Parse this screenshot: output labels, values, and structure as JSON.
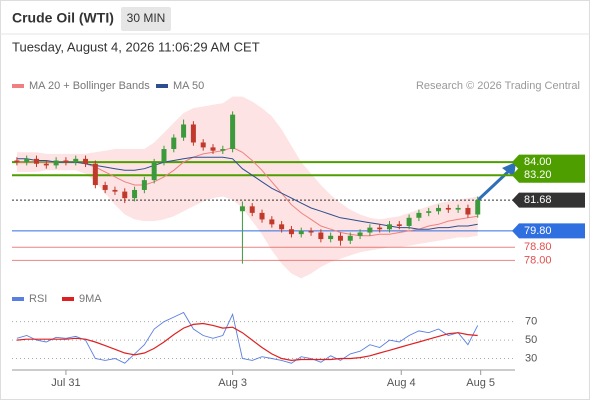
{
  "header": {
    "instrument": "Crude Oil (WTI)",
    "timeframe": "30 MIN",
    "datetime": "Tuesday, August 4, 2026 11:06:29 AM CET",
    "credit": "Research © 2026 Trading Central"
  },
  "chart_data": [
    {
      "type": "candlestick",
      "up_color": "#3c9a3c",
      "down_color": "#c0392b",
      "xlim": [
        -0.5,
        50.8
      ],
      "ylim": [
        76.8,
        88.1
      ],
      "open": [
        84.1,
        84.0,
        84.2,
        83.9,
        83.8,
        84.1,
        84.0,
        84.2,
        83.9,
        82.6,
        82.3,
        82.2,
        81.8,
        82.3,
        82.9,
        84.0,
        84.8,
        85.5,
        86.3,
        85.2,
        84.9,
        84.7,
        84.8,
        81.0,
        81.3,
        80.9,
        80.5,
        80.2,
        79.9,
        79.6,
        79.8,
        79.7,
        79.3,
        79.5,
        79.2,
        79.5,
        79.7,
        80.0,
        79.9,
        80.2,
        80.1,
        80.6,
        80.9,
        81.0,
        81.2,
        81.1,
        81.2,
        80.8
      ],
      "high": [
        84.3,
        84.4,
        84.4,
        84.1,
        84.3,
        84.3,
        84.4,
        84.4,
        84.1,
        82.8,
        82.5,
        82.4,
        82.5,
        83.1,
        84.2,
        85.0,
        85.7,
        86.6,
        86.5,
        85.4,
        85.1,
        85.0,
        87.1,
        81.6,
        81.5,
        81.1,
        80.7,
        80.4,
        80.1,
        80.0,
        80.0,
        79.9,
        79.7,
        79.7,
        79.7,
        79.9,
        80.2,
        80.2,
        80.4,
        80.4,
        80.8,
        81.1,
        81.2,
        81.4,
        81.4,
        81.4,
        81.4,
        81.9
      ],
      "low": [
        83.8,
        83.8,
        83.7,
        83.6,
        83.6,
        83.8,
        83.8,
        83.7,
        82.4,
        82.1,
        82.0,
        81.5,
        81.6,
        82.1,
        82.7,
        83.8,
        84.6,
        85.3,
        85.0,
        84.7,
        84.5,
        84.5,
        84.6,
        77.8,
        80.7,
        80.3,
        80.0,
        79.7,
        79.4,
        79.4,
        79.5,
        79.1,
        79.1,
        78.9,
        79.0,
        79.3,
        79.5,
        79.7,
        79.7,
        79.9,
        79.9,
        80.4,
        80.7,
        80.8,
        80.9,
        80.9,
        80.6,
        80.6
      ],
      "close": [
        84.0,
        84.2,
        83.9,
        83.8,
        84.1,
        84.0,
        84.2,
        83.9,
        82.6,
        82.3,
        82.2,
        81.8,
        82.3,
        82.9,
        84.0,
        84.8,
        85.5,
        86.3,
        85.2,
        84.9,
        84.7,
        84.8,
        86.9,
        81.3,
        80.9,
        80.5,
        80.2,
        79.9,
        79.6,
        79.8,
        79.7,
        79.3,
        79.5,
        79.2,
        79.5,
        79.7,
        80.0,
        79.9,
        80.2,
        80.1,
        80.6,
        80.9,
        81.0,
        81.2,
        81.1,
        81.2,
        80.8,
        81.68
      ],
      "series": [
        {
          "name": "MA 20 + Bollinger Bands",
          "color": "#f08080",
          "band_color": "#fde3e3",
          "values": [
            84.0,
            84.0,
            84.0,
            84.0,
            84.0,
            84.0,
            84.0,
            83.9,
            83.7,
            83.4,
            83.1,
            82.8,
            82.6,
            82.6,
            82.8,
            83.1,
            83.5,
            84.0,
            84.3,
            84.5,
            84.6,
            84.7,
            84.9,
            84.6,
            84.1,
            83.5,
            82.8,
            82.1,
            81.4,
            80.9,
            80.5,
            80.1,
            79.9,
            79.7,
            79.6,
            79.5,
            79.5,
            79.6,
            79.6,
            79.7,
            79.8,
            79.9,
            80.1,
            80.2,
            80.4,
            80.5,
            80.6,
            80.7
          ],
          "upper": [
            84.6,
            84.6,
            84.6,
            84.5,
            84.5,
            84.5,
            84.5,
            84.5,
            84.6,
            84.7,
            84.8,
            84.8,
            84.8,
            84.8,
            85.2,
            85.8,
            86.4,
            87.0,
            87.3,
            87.4,
            87.5,
            87.6,
            88.0,
            88.0,
            87.7,
            87.3,
            86.8,
            86.0,
            85.0,
            84.0,
            83.3,
            82.6,
            82.0,
            81.5,
            81.1,
            80.8,
            80.6,
            80.5,
            80.6,
            80.7,
            80.9,
            81.1,
            81.3,
            81.5,
            81.6,
            81.7,
            81.8,
            81.9
          ],
          "lower": [
            83.4,
            83.4,
            83.4,
            83.5,
            83.5,
            83.5,
            83.5,
            83.3,
            82.8,
            82.1,
            81.4,
            80.8,
            80.5,
            80.4,
            80.4,
            80.5,
            80.7,
            81.0,
            81.3,
            81.6,
            81.8,
            81.9,
            81.7,
            81.2,
            80.4,
            79.6,
            78.6,
            77.8,
            77.2,
            76.9,
            77.2,
            77.6,
            77.9,
            78.1,
            78.3,
            78.5,
            78.6,
            78.7,
            78.8,
            78.8,
            78.9,
            79.0,
            79.1,
            79.2,
            79.3,
            79.4,
            79.4,
            79.5
          ]
        },
        {
          "name": "MA 50",
          "color": "#2e4f8f",
          "values": [
            84.2,
            84.2,
            84.1,
            84.1,
            84.0,
            84.0,
            84.0,
            83.9,
            83.8,
            83.7,
            83.6,
            83.5,
            83.5,
            83.6,
            83.8,
            84.0,
            84.1,
            84.2,
            84.3,
            84.3,
            84.3,
            84.3,
            84.2,
            83.6,
            83.2,
            82.8,
            82.4,
            82.1,
            81.8,
            81.5,
            81.2,
            81.0,
            80.8,
            80.6,
            80.5,
            80.4,
            80.3,
            80.2,
            80.1,
            80.0,
            80.0,
            79.9,
            79.9,
            80.0,
            80.0,
            80.1,
            80.1,
            80.2
          ]
        }
      ],
      "levels": [
        {
          "value": 84.0,
          "label": "84.00",
          "color": "#4e9e00"
        },
        {
          "value": 83.2,
          "label": "83.20",
          "color": "#4e9e00"
        },
        {
          "value": 81.68,
          "label": "81.68",
          "color": "#333333"
        },
        {
          "value": 79.8,
          "label": "79.80",
          "color": "#2f6fe0"
        },
        {
          "value": 78.8,
          "label": "78.80",
          "color": "#e05050"
        },
        {
          "value": 78.0,
          "label": "78.00",
          "color": "#e05050"
        }
      ]
    },
    {
      "type": "line",
      "xlim": [
        -0.5,
        50.8
      ],
      "ylim": [
        23,
        87
      ],
      "yticks": [
        30,
        50,
        70
      ],
      "xticks": [
        {
          "value": 5,
          "label": "Jul 31"
        },
        {
          "value": 22,
          "label": "Aug 3"
        },
        {
          "value": 39.2,
          "label": "Aug 4"
        },
        {
          "value": 47.3,
          "label": "Aug 5"
        }
      ],
      "series": [
        {
          "name": "RSI",
          "color": "#5b7fe0",
          "values": [
            52,
            55,
            50,
            48,
            53,
            52,
            54,
            50,
            30,
            28,
            30,
            25,
            35,
            45,
            62,
            70,
            75,
            80,
            62,
            55,
            52,
            55,
            78,
            30,
            28,
            32,
            30,
            28,
            25,
            32,
            30,
            26,
            33,
            28,
            35,
            38,
            45,
            42,
            50,
            48,
            55,
            60,
            58,
            62,
            55,
            58,
            45,
            66
          ]
        },
        {
          "name": "9MA",
          "color": "#e02020",
          "values": [
            50,
            51,
            51,
            51,
            51,
            51,
            52,
            51,
            48,
            44,
            40,
            36,
            34,
            36,
            41,
            48,
            56,
            63,
            67,
            68,
            66,
            63,
            64,
            58,
            50,
            42,
            35,
            30,
            28,
            29,
            29,
            29,
            29,
            30,
            30,
            31,
            33,
            36,
            39,
            42,
            45,
            48,
            51,
            54,
            57,
            58,
            56,
            55
          ]
        }
      ]
    }
  ]
}
